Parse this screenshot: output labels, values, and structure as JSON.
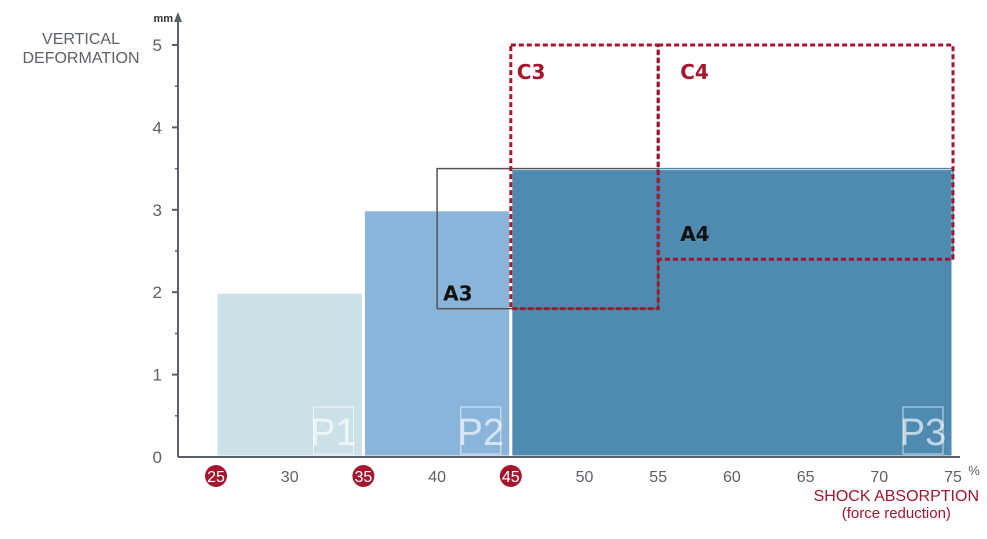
{
  "chart_data": {
    "type": "area",
    "ylabel_lines": [
      "VERTICAL",
      "DEFORMATION"
    ],
    "ylabel_unit": "mm",
    "xlabel_lines": [
      "SHOCK ABSORPTION",
      "(force reduction)"
    ],
    "xlabel_unit": "%",
    "xlim": [
      25,
      75
    ],
    "ylim": [
      0,
      5
    ],
    "x_ticks": [
      25,
      30,
      35,
      40,
      45,
      50,
      55,
      60,
      65,
      70,
      75
    ],
    "x_tick_labels": [
      "25",
      "30",
      "35",
      "40",
      "45",
      "50",
      "55",
      "60",
      "65",
      "70",
      "75"
    ],
    "x_highlighted_ticks": [
      25,
      35,
      45
    ],
    "y_ticks": [
      0,
      1,
      2,
      3,
      4,
      5
    ],
    "y_tick_labels": [
      "0",
      "1",
      "2",
      "3",
      "4",
      "5"
    ],
    "regions": [
      {
        "name": "P1",
        "style": "filled",
        "color": "#cbe1e7",
        "x": [
          25,
          35
        ],
        "y": [
          0,
          2
        ]
      },
      {
        "name": "P2",
        "style": "filled",
        "color": "#8ab4d9",
        "x": [
          35,
          45
        ],
        "y": [
          0,
          3
        ]
      },
      {
        "name": "P3",
        "style": "filled",
        "color": "#4f8ab1",
        "x": [
          45,
          75
        ],
        "y": [
          0,
          3.5
        ]
      },
      {
        "name": "A3",
        "style": "outline",
        "color": "#555555",
        "x": [
          40,
          55
        ],
        "y": [
          1.8,
          3.5
        ]
      },
      {
        "name": "A4",
        "style": "outline",
        "color": "#4f8ab1",
        "x": [
          55,
          75
        ],
        "y": [
          2.4,
          3.5
        ]
      },
      {
        "name": "C3",
        "style": "dashed",
        "color": "#a4162d",
        "x": [
          45,
          55
        ],
        "y": [
          1.8,
          5
        ]
      },
      {
        "name": "C4",
        "style": "dashed",
        "color": "#a4162d",
        "x": [
          55,
          75
        ],
        "y": [
          2.4,
          5
        ]
      }
    ],
    "colors": {
      "axis": "#5b6168",
      "accent": "#a4162d"
    }
  }
}
